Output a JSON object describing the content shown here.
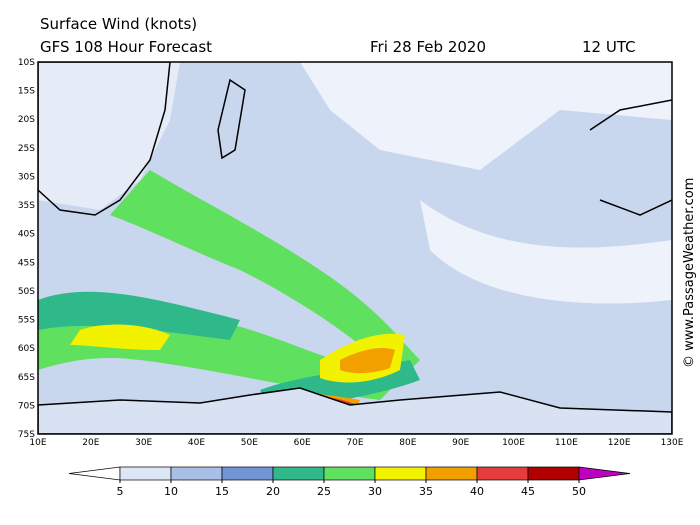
{
  "header": {
    "line1": "Surface Wind (knots)",
    "line2": "GFS 108 Hour Forecast",
    "date": "Fri 28 Feb 2020",
    "time": "12 UTC"
  },
  "lat_labels": [
    "10S",
    "15S",
    "20S",
    "25S",
    "30S",
    "35S",
    "40S",
    "45S",
    "50S",
    "55S",
    "60S",
    "65S",
    "70S",
    "75S"
  ],
  "lon_labels": [
    "10E",
    "20E",
    "30E",
    "40E",
    "50E",
    "60E",
    "70E",
    "80E",
    "90E",
    "100E",
    "110E",
    "120E",
    "130E"
  ],
  "colorbar": {
    "ticks": [
      5,
      10,
      15,
      20,
      25,
      30,
      35,
      40,
      45,
      50
    ],
    "colors": [
      "#ffffff",
      "#dde6f5",
      "#a9bfe6",
      "#7094d4",
      "#2fb88a",
      "#5fe05f",
      "#f2f200",
      "#f2a000",
      "#e63c3c",
      "#b00000",
      "#c000c0"
    ]
  },
  "watermark": "© www.PassageWeather.com"
}
